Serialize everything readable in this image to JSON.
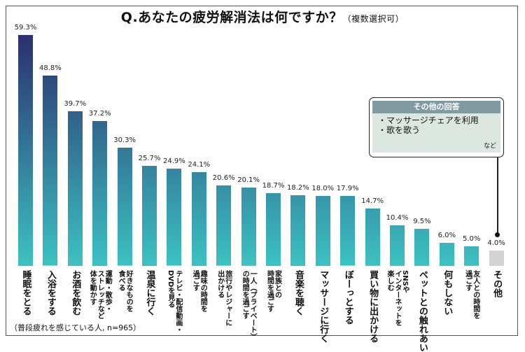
{
  "chart_data": {
    "type": "bar",
    "title": "Q.あなたの疲労解消法は何ですか？",
    "subtitle": "（複数選択可）",
    "note": "（普段疲れを感じている人, n=965）",
    "categories": [
      "睡眠をとる",
      "入浴をする",
      "お酒を飲む",
      "運動・散歩・\nストレッチなど\n体を動かす",
      "好きなものを\n食べる",
      "温泉に行く",
      "テレビ・配信動画・\nDVDを見る",
      "趣味の時間を\n過ごす",
      "旅行やレジャーに\n出かける",
      "一人（プライベート）\nの時間を過ごす",
      "家族との\n時間を過ごす",
      "音楽を聴く",
      "マッサージに行く",
      "ぼーっとする",
      "買い物に出かける",
      "SNSや\nインターネットを\n楽しむ",
      "ペットとの触れあい",
      "何もしない",
      "友人との時間を\n過ごす",
      "その他"
    ],
    "values": [
      59.3,
      48.8,
      39.7,
      37.2,
      30.3,
      25.7,
      24.9,
      24.1,
      20.6,
      20.1,
      18.7,
      18.2,
      18.0,
      17.9,
      14.7,
      10.4,
      9.5,
      6.0,
      5.0,
      4.0
    ],
    "value_labels": [
      "59.3%",
      "48.8%",
      "39.7%",
      "37.2%",
      "30.3%",
      "25.7%",
      "24.9%",
      "24.1%",
      "20.6%",
      "20.1%",
      "18.7%",
      "18.2%",
      "18.0%",
      "17.9%",
      "14.7%",
      "10.4%",
      "9.5%",
      "6.0%",
      "5.0%",
      "4.0%"
    ],
    "unit": "%",
    "grid": false,
    "colors": {
      "bar_top": "#2b2f6e",
      "bar_bottom": "#3cc2c2",
      "other": "#d3d3d3"
    }
  },
  "callout": {
    "title": "その他の回答",
    "items": [
      "・マッサージチェアを利用",
      "・歌を歌う"
    ],
    "suffix": "など"
  }
}
